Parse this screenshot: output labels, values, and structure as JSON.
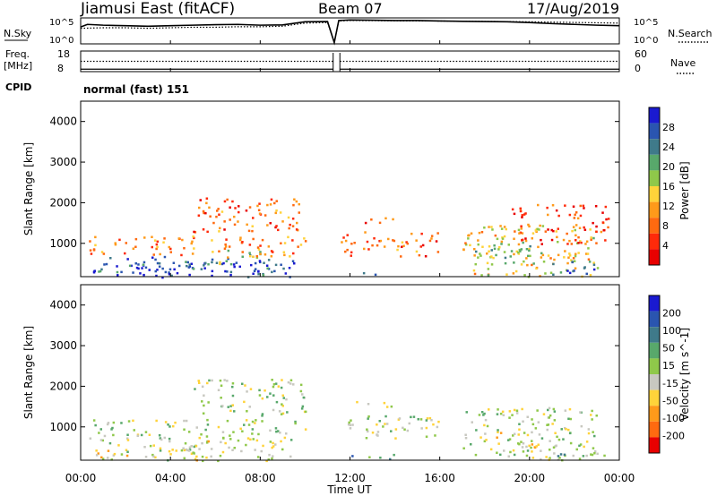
{
  "chart_data": [
    {
      "type": "line",
      "header": {
        "station": "Jiamusi East (fitACF)",
        "beam": "Beam 07",
        "date": "17/Aug/2019"
      },
      "left_label": "N.Sky",
      "left_ticks": [
        "10^5",
        "10^0"
      ],
      "right_label": "N.Search",
      "right_ticks": [
        "10^5",
        "10^0"
      ],
      "series": [
        {
          "name": "N.Sky",
          "style": "solid",
          "x_hours": [
            0,
            0.3,
            1,
            2,
            3,
            4,
            5,
            6,
            7,
            8,
            9,
            10,
            11,
            11.3,
            11.5,
            12,
            13,
            14,
            15,
            16,
            17,
            18,
            19,
            20,
            21,
            22,
            23,
            24
          ],
          "values": [
            0.65,
            0.75,
            0.72,
            0.7,
            0.68,
            0.7,
            0.72,
            0.74,
            0.75,
            0.72,
            0.73,
            0.85,
            0.86,
            0.05,
            0.9,
            0.92,
            0.91,
            0.9,
            0.9,
            0.88,
            0.87,
            0.86,
            0.85,
            0.82,
            0.78,
            0.75,
            0.72,
            0.7
          ]
        },
        {
          "name": "N.Search",
          "style": "dotted",
          "x_hours": [
            0,
            1,
            2,
            3,
            4,
            5,
            6,
            7,
            8,
            9,
            10,
            11,
            11.3,
            11.5,
            12,
            16,
            20,
            24
          ],
          "values": [
            0.6,
            0.62,
            0.62,
            0.6,
            0.62,
            0.64,
            0.64,
            0.66,
            0.66,
            0.68,
            0.8,
            0.82,
            0.05,
            0.88,
            0.9,
            0.88,
            0.85,
            0.8
          ]
        }
      ]
    },
    {
      "type": "line",
      "left_label": [
        "Freq.",
        "[MHz]"
      ],
      "left_ticks": [
        "18",
        "8"
      ],
      "right_label": "Nave",
      "right_ticks": [
        "60",
        "0"
      ],
      "series": [
        {
          "name": "Freq",
          "style": "dotted",
          "level": 0.5
        },
        {
          "name": "Nave",
          "style": "solid",
          "level": 0.12
        }
      ],
      "gap_hours": [
        11.25,
        11.55
      ]
    },
    {
      "type": "table",
      "label": "CPID",
      "value": "normal (fast) 151"
    },
    {
      "type": "heatmap",
      "ylabel": "Slant Range [km]",
      "yticks": [
        "4000",
        "3000",
        "2000",
        "1000"
      ],
      "ylim": [
        180,
        4500
      ],
      "colorbar": {
        "label": "Power [dB]",
        "ticks": [
          "28",
          "24",
          "20",
          "16",
          "12",
          "8",
          "4"
        ],
        "colors": [
          "#1a1ad0",
          "#2a55b0",
          "#3f7a8a",
          "#58a86b",
          "#8fc84a",
          "#ffd33a",
          "#ff9a1a",
          "#ff6a10",
          "#ff2a0a",
          "#e80000"
        ]
      },
      "regions": [
        {
          "x": [
            0.5,
            9.5
          ],
          "y": [
            180,
            700
          ],
          "level": 0.9
        },
        {
          "x": [
            0.2,
            3.0
          ],
          "y": [
            300,
            550
          ],
          "level": 0.75
        },
        {
          "x": [
            3.2,
            5.5
          ],
          "y": [
            250,
            600
          ],
          "level": 0.8
        },
        {
          "x": [
            5.5,
            8.0
          ],
          "y": [
            500,
            900
          ],
          "level": 0.55
        },
        {
          "x": [
            8.0,
            9.0
          ],
          "y": [
            200,
            450
          ],
          "level": 0.8
        },
        {
          "x": [
            0.3,
            10.0
          ],
          "y": [
            700,
            1200
          ],
          "level": 0.3
        },
        {
          "x": [
            5.0,
            10.0
          ],
          "y": [
            1300,
            2200
          ],
          "level": 0.25
        },
        {
          "x": [
            12.0,
            14.0
          ],
          "y": [
            1500,
            1650
          ],
          "level": 0.2
        },
        {
          "x": [
            11.5,
            16.0
          ],
          "y": [
            700,
            1300
          ],
          "level": 0.25
        },
        {
          "x": [
            12.5,
            13.5
          ],
          "y": [
            200,
            300
          ],
          "level": 0.85
        },
        {
          "x": [
            17.0,
            23.0
          ],
          "y": [
            200,
            1500
          ],
          "level": 0.45
        },
        {
          "x": [
            17.5,
            20.5
          ],
          "y": [
            500,
            1000
          ],
          "level": 0.6
        },
        {
          "x": [
            21.0,
            23.3
          ],
          "y": [
            250,
            600
          ],
          "level": 0.85
        },
        {
          "x": [
            19.0,
            23.5
          ],
          "y": [
            1000,
            2000
          ],
          "level": 0.2
        }
      ]
    },
    {
      "type": "heatmap",
      "ylabel": "Slant Range [km]",
      "yticks": [
        "4000",
        "3000",
        "2000",
        "1000"
      ],
      "ylim": [
        180,
        4500
      ],
      "xticks": [
        "00:00",
        "04:00",
        "08:00",
        "12:00",
        "16:00",
        "20:00",
        "00:00"
      ],
      "xlabel": "Time UT",
      "colorbar": {
        "label": "Velocity [m s^-1]",
        "ticks": [
          "200",
          "100",
          "50",
          "15",
          "-15",
          "-50",
          "-100",
          "-200"
        ],
        "colors": [
          "#1a1ad0",
          "#2a55b0",
          "#3f7a8a",
          "#58a86b",
          "#8fc84a",
          "#c8c8c0",
          "#ffd33a",
          "#ff9a1a",
          "#ff6a10",
          "#e80000"
        ]
      },
      "regions": [
        {
          "x": [
            0.5,
            9.5
          ],
          "y": [
            180,
            700
          ],
          "level": 0.45
        },
        {
          "x": [
            3.2,
            5.5
          ],
          "y": [
            250,
            600
          ],
          "level": 0.5
        },
        {
          "x": [
            0.3,
            10.0
          ],
          "y": [
            700,
            1200
          ],
          "level": 0.5
        },
        {
          "x": [
            5.0,
            10.0
          ],
          "y": [
            1300,
            2200
          ],
          "level": 0.5
        },
        {
          "x": [
            12.0,
            14.0
          ],
          "y": [
            1500,
            1650
          ],
          "level": 0.5
        },
        {
          "x": [
            11.5,
            16.0
          ],
          "y": [
            700,
            1300
          ],
          "level": 0.5
        },
        {
          "x": [
            12.0,
            14.0
          ],
          "y": [
            200,
            350
          ],
          "level": 0.65
        },
        {
          "x": [
            17.0,
            23.0
          ],
          "y": [
            200,
            1500
          ],
          "level": 0.5
        },
        {
          "x": [
            18.5,
            20.5
          ],
          "y": [
            500,
            900
          ],
          "level": 0.42
        },
        {
          "x": [
            21.0,
            23.3
          ],
          "y": [
            250,
            600
          ],
          "level": 0.62
        }
      ]
    }
  ]
}
